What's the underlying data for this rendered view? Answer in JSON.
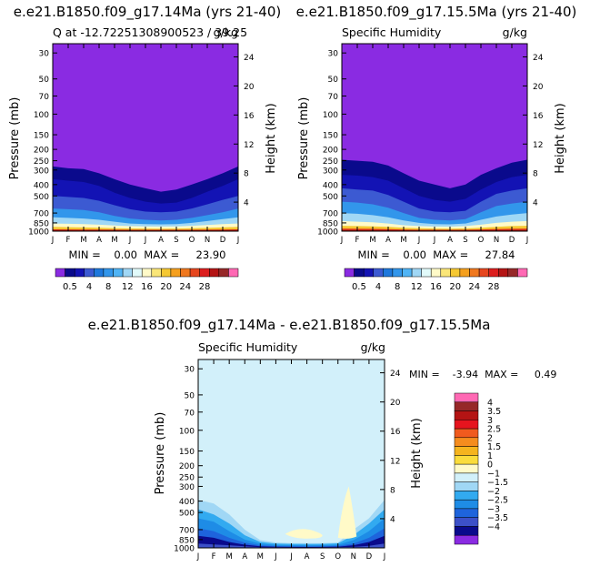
{
  "chart_data": [
    {
      "type": "area",
      "title": "e.e21.B1850.f09_g17.14Ma (yrs 21-40)",
      "subtitle_left": "Q at -12.72251308900523 / 39.25",
      "subtitle_right": "g/kg",
      "ylabel": "Pressure (mb)",
      "ylabel_right": "Height (km)",
      "x_ticks": [
        "J",
        "F",
        "M",
        "A",
        "M",
        "J",
        "J",
        "A",
        "S",
        "O",
        "N",
        "D",
        "J"
      ],
      "pressure_ticks": [
        "30",
        "50",
        "70",
        "100",
        "150",
        "200",
        "250",
        "300",
        "400",
        "500",
        "700",
        "850",
        "1000"
      ],
      "height_ticks": [
        "4",
        "8",
        "12",
        "16",
        "20",
        "24"
      ],
      "stats": "MIN =    0.00  MAX =     23.90",
      "min": 0.0,
      "max": 23.9,
      "boundaries": [
        {
          "level": 0.5,
          "p": [
            280,
            290,
            295,
            320,
            360,
            400,
            430,
            460,
            440,
            400,
            360,
            320,
            280
          ]
        },
        {
          "level": 2,
          "p": [
            360,
            370,
            380,
            410,
            470,
            520,
            560,
            580,
            570,
            520,
            460,
            410,
            360
          ]
        },
        {
          "level": 4,
          "p": [
            500,
            510,
            520,
            550,
            600,
            650,
            680,
            690,
            680,
            640,
            590,
            540,
            500
          ]
        },
        {
          "level": 8,
          "p": [
            640,
            650,
            660,
            690,
            740,
            780,
            800,
            810,
            800,
            770,
            730,
            690,
            640
          ]
        },
        {
          "level": 12,
          "p": [
            760,
            770,
            780,
            800,
            830,
            860,
            870,
            875,
            870,
            850,
            820,
            790,
            760
          ]
        },
        {
          "level": 16,
          "p": [
            860,
            865,
            870,
            880,
            895,
            905,
            910,
            912,
            910,
            900,
            885,
            870,
            860
          ]
        },
        {
          "level": 20,
          "p": [
            920,
            925,
            930,
            935,
            942,
            948,
            950,
            951,
            950,
            945,
            938,
            930,
            920
          ]
        },
        {
          "level": 24,
          "p": [
            965,
            967,
            968,
            970,
            972,
            974,
            975,
            976,
            975,
            973,
            971,
            968,
            965
          ]
        }
      ]
    },
    {
      "type": "area",
      "title": "e.e21.B1850.f09_g17.15.5Ma (yrs 21-40)",
      "subtitle_left": "Specific Humidity",
      "subtitle_right": "g/kg",
      "ylabel": "Pressure (mb)",
      "ylabel_right": "Height (km)",
      "x_ticks": [
        "J",
        "F",
        "M",
        "A",
        "M",
        "J",
        "J",
        "A",
        "S",
        "O",
        "N",
        "D",
        "J"
      ],
      "pressure_ticks": [
        "30",
        "50",
        "70",
        "100",
        "150",
        "200",
        "250",
        "300",
        "400",
        "500",
        "700",
        "850",
        "1000"
      ],
      "height_ticks": [
        "4",
        "8",
        "12",
        "16",
        "20",
        "24"
      ],
      "stats": "MIN =    0.00  MAX =     27.84",
      "min": 0.0,
      "max": 27.84,
      "boundaries": [
        {
          "level": 0.5,
          "p": [
            245,
            250,
            255,
            275,
            320,
            370,
            400,
            430,
            400,
            330,
            290,
            260,
            245
          ]
        },
        {
          "level": 2,
          "p": [
            330,
            335,
            345,
            370,
            430,
            500,
            540,
            560,
            530,
            440,
            380,
            345,
            330
          ]
        },
        {
          "level": 4,
          "p": [
            430,
            440,
            450,
            490,
            560,
            640,
            680,
            690,
            670,
            560,
            480,
            450,
            430
          ]
        },
        {
          "level": 8,
          "p": [
            560,
            570,
            590,
            630,
            700,
            770,
            800,
            810,
            790,
            690,
            610,
            580,
            560
          ]
        },
        {
          "level": 12,
          "p": [
            700,
            710,
            730,
            760,
            810,
            850,
            870,
            875,
            860,
            800,
            750,
            720,
            700
          ]
        },
        {
          "level": 16,
          "p": [
            820,
            830,
            840,
            860,
            890,
            905,
            912,
            915,
            905,
            880,
            850,
            830,
            820
          ]
        },
        {
          "level": 20,
          "p": [
            900,
            905,
            910,
            920,
            935,
            945,
            950,
            952,
            948,
            935,
            920,
            905,
            900
          ]
        },
        {
          "level": 24,
          "p": [
            950,
            952,
            955,
            960,
            968,
            973,
            975,
            976,
            974,
            966,
            958,
            952,
            950
          ]
        }
      ]
    },
    {
      "type": "area",
      "title": "e.e21.B1850.f09_g17.14Ma - e.e21.B1850.f09_g17.15.5Ma",
      "subtitle_left": "Specific Humidity",
      "subtitle_right": "g/kg",
      "ylabel": "Pressure (mb)",
      "ylabel_right": "Height (km)",
      "x_ticks": [
        "J",
        "F",
        "M",
        "A",
        "M",
        "J",
        "J",
        "A",
        "S",
        "O",
        "N",
        "D",
        "J"
      ],
      "pressure_ticks": [
        "30",
        "50",
        "70",
        "100",
        "150",
        "200",
        "250",
        "300",
        "400",
        "500",
        "700",
        "850",
        "1000"
      ],
      "height_ticks": [
        "4",
        "8",
        "12",
        "16",
        "20",
        "24"
      ],
      "stats": "MIN =    -3.94  MAX =     0.49",
      "min": -3.94,
      "max": 0.49
    }
  ],
  "colorbar_horizontal": {
    "colors": [
      "#8a2be2",
      "#0a0a8c",
      "#1313b4",
      "#3c5ad2",
      "#1e78dc",
      "#3296eb",
      "#50b4f5",
      "#a0d7f5",
      "#e1fafa",
      "#fffac8",
      "#fae678",
      "#f5c832",
      "#f5a01e",
      "#f0781e",
      "#e6461e",
      "#dc1e1e",
      "#b41414",
      "#962828",
      "#ff69b4"
    ],
    "labels": [
      "0.5",
      "4",
      "8",
      "12",
      "16",
      "20",
      "24",
      "28"
    ]
  },
  "colorbar_vertical": {
    "colors": [
      "#ff69b4",
      "#962828",
      "#b41414",
      "#e6141e",
      "#f05a1e",
      "#f58c1e",
      "#f5b41e",
      "#fadc3c",
      "#fffac8",
      "#d2f0fa",
      "#a0d7f5",
      "#32aaf0",
      "#1e8ce6",
      "#1e64dc",
      "#3c50c8",
      "#0a0a8c",
      "#8a2be2"
    ],
    "labels": [
      "4",
      "3.5",
      "3",
      "2.5",
      "2",
      "1.5",
      "1",
      "0",
      "−1",
      "−1.5",
      "−2",
      "−2.5",
      "−3",
      "−3.5",
      "−4"
    ]
  }
}
